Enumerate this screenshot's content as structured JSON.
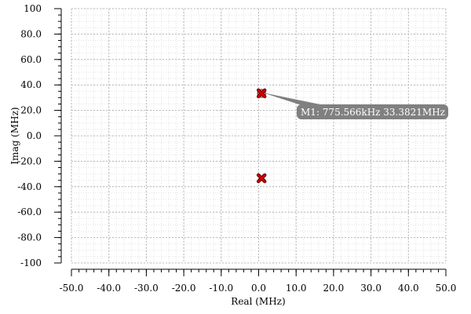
{
  "chart_data": {
    "type": "scatter",
    "xlabel": "Real (MHz)",
    "ylabel": "Imag (MHz)",
    "xlim": [
      -50,
      50
    ],
    "ylim": [
      -100,
      100
    ],
    "x_ticks": [
      -50,
      -40,
      -30,
      -20,
      -10,
      0,
      10,
      20,
      30,
      40,
      50
    ],
    "y_ticks": [
      -100,
      -80,
      -60,
      -40,
      -20,
      0,
      20,
      40,
      60,
      80,
      100
    ],
    "x_tick_labels": [
      "-50.0",
      "-40.0",
      "-30.0",
      "-20.0",
      "-10.0",
      "0.0",
      "10.0",
      "20.0",
      "30.0",
      "40.0",
      "50.0"
    ],
    "y_tick_labels": [
      "-100",
      "-80.0",
      "-60.0",
      "-40.0",
      "-20.0",
      "0.0",
      "20.0",
      "40.0",
      "60.0",
      "80.0",
      "100"
    ],
    "grid": true,
    "points": [
      {
        "x": 0.775566,
        "y": 33.3821
      },
      {
        "x": 0.775566,
        "y": -33.3821
      }
    ],
    "marker_color": "#d00000",
    "annotation": {
      "text": "M1: 775.566kHz 33.3821MHz",
      "point_index": 0,
      "box_color": "#808080"
    }
  }
}
